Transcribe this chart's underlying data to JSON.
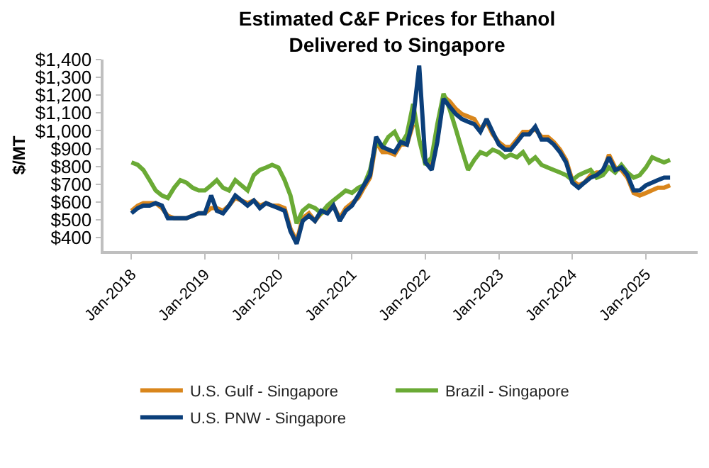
{
  "chart_data": {
    "type": "line",
    "title": "Estimated C&F Prices for Ethanol\nDelivered to Singapore",
    "ylabel": "$/MT",
    "x": [
      "2018-01",
      "2018-02",
      "2018-03",
      "2018-04",
      "2018-05",
      "2018-06",
      "2018-07",
      "2018-08",
      "2018-09",
      "2018-10",
      "2018-11",
      "2018-12",
      "2019-01",
      "2019-02",
      "2019-03",
      "2019-04",
      "2019-05",
      "2019-06",
      "2019-07",
      "2019-08",
      "2019-09",
      "2019-10",
      "2019-11",
      "2019-12",
      "2020-01",
      "2020-02",
      "2020-03",
      "2020-04",
      "2020-05",
      "2020-06",
      "2020-07",
      "2020-08",
      "2020-09",
      "2020-10",
      "2020-11",
      "2020-12",
      "2021-01",
      "2021-02",
      "2021-03",
      "2021-04",
      "2021-05",
      "2021-06",
      "2021-07",
      "2021-08",
      "2021-09",
      "2021-10",
      "2021-11",
      "2021-12",
      "2022-01",
      "2022-02",
      "2022-03",
      "2022-04",
      "2022-05",
      "2022-06",
      "2022-07",
      "2022-08",
      "2022-09",
      "2022-10",
      "2022-11",
      "2022-12",
      "2023-01",
      "2023-02",
      "2023-03",
      "2023-04",
      "2023-05",
      "2023-06",
      "2023-07",
      "2023-08",
      "2023-09",
      "2023-10",
      "2023-11",
      "2023-12",
      "2024-01",
      "2024-02",
      "2024-03",
      "2024-04",
      "2024-05",
      "2024-06",
      "2024-07",
      "2024-08",
      "2024-09",
      "2024-10",
      "2024-11",
      "2024-12",
      "2025-01",
      "2025-02",
      "2025-03",
      "2025-04",
      "2025-05"
    ],
    "series": [
      {
        "name": "U.S. Gulf - Singapore",
        "color": "#d9861c",
        "values": [
          551,
          580,
          594,
          594,
          594,
          566,
          523,
          509,
          509,
          509,
          523,
          537,
          537,
          566,
          566,
          551,
          580,
          623,
          609,
          594,
          609,
          580,
          594,
          580,
          580,
          566,
          451,
          380,
          509,
          537,
          494,
          537,
          551,
          580,
          509,
          566,
          594,
          623,
          680,
          737,
          937,
          880,
          880,
          866,
          923,
          923,
          1037,
          null,
          837,
          794,
          951,
          1194,
          1166,
          1123,
          1094,
          1080,
          1066,
          1009,
          1051,
          980,
          937,
          909,
          909,
          951,
          994,
          994,
          1009,
          966,
          966,
          937,
          894,
          837,
          723,
          694,
          709,
          751,
          766,
          766,
          866,
          794,
          780,
          737,
          651,
          637,
          651,
          666,
          680,
          680,
          694
        ]
      },
      {
        "name": "Brazil - Singapore",
        "color": "#6aaa35",
        "values": [
          823,
          809,
          780,
          723,
          665,
          637,
          623,
          680,
          723,
          709,
          680,
          665,
          665,
          694,
          723,
          680,
          665,
          723,
          694,
          665,
          751,
          780,
          794,
          809,
          794,
          723,
          637,
          480,
          551,
          580,
          566,
          537,
          580,
          609,
          637,
          665,
          651,
          680,
          694,
          780,
          937,
          909,
          966,
          994,
          923,
          980,
          1151,
          951,
          809,
          851,
          1037,
          1209,
          1123,
          1009,
          894,
          780,
          837,
          880,
          866,
          894,
          880,
          851,
          866,
          851,
          880,
          823,
          851,
          809,
          794,
          780,
          766,
          751,
          723,
          751,
          766,
          780,
          737,
          751,
          794,
          766,
          809,
          766,
          737,
          751,
          794,
          851,
          837,
          823,
          837
        ]
      },
      {
        "name": "U.S. PNW - Singapore",
        "color": "#0b3f7a",
        "values": [
          537,
          566,
          580,
          580,
          594,
          580,
          509,
          509,
          509,
          509,
          523,
          537,
          537,
          637,
          551,
          537,
          580,
          637,
          609,
          580,
          609,
          566,
          594,
          580,
          566,
          551,
          437,
          366,
          494,
          523,
          494,
          551,
          537,
          580,
          494,
          551,
          580,
          637,
          694,
          751,
          966,
          909,
          894,
          880,
          937,
          923,
          1066,
          1366,
          823,
          780,
          937,
          1180,
          1137,
          1094,
          1066,
          1051,
          1037,
          994,
          1066,
          994,
          923,
          894,
          894,
          937,
          980,
          980,
          1023,
          951,
          951,
          923,
          880,
          823,
          709,
          680,
          709,
          737,
          751,
          780,
          851,
          780,
          794,
          751,
          665,
          665,
          694,
          709,
          723,
          737,
          737
        ]
      }
    ],
    "xlim": [
      "2017-08-15",
      "2025-09-15"
    ],
    "xticks": [
      {
        "value": "2018-01-01",
        "label": "Jan-2018"
      },
      {
        "value": "2019-01-01",
        "label": "Jan-2019"
      },
      {
        "value": "2020-01-01",
        "label": "Jan-2020"
      },
      {
        "value": "2021-01-01",
        "label": "Jan-2021"
      },
      {
        "value": "2022-01-01",
        "label": "Jan-2022"
      },
      {
        "value": "2023-01-01",
        "label": "Jan-2023"
      },
      {
        "value": "2024-01-01",
        "label": "Jan-2024"
      },
      {
        "value": "2025-01-01",
        "label": "Jan-2025"
      }
    ],
    "ylim": [
      325,
      1400
    ],
    "yticks": [
      {
        "value": 400,
        "label": "$400"
      },
      {
        "value": 500,
        "label": "$500"
      },
      {
        "value": 600,
        "label": "$600"
      },
      {
        "value": 700,
        "label": "$700"
      },
      {
        "value": 800,
        "label": "$800"
      },
      {
        "value": 900,
        "label": "$900"
      },
      {
        "value": 1000,
        "label": "$1,000"
      },
      {
        "value": 1100,
        "label": "$1,100"
      },
      {
        "value": 1200,
        "label": "$1,200"
      },
      {
        "value": 1300,
        "label": "$1,300"
      },
      {
        "value": 1400,
        "label": "$1,400"
      }
    ],
    "legend": "bottom",
    "line_style": "solid"
  }
}
